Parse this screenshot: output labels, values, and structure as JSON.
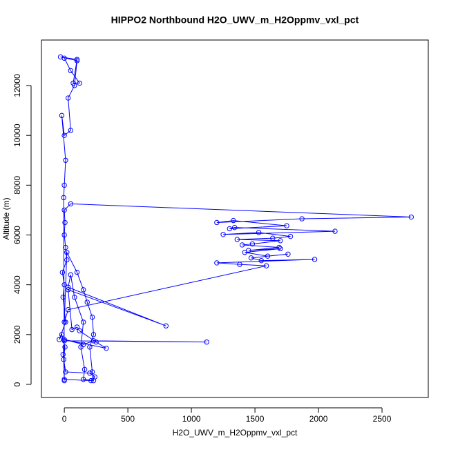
{
  "chart_data": {
    "type": "line",
    "title": "HIPPO2 Northbound H2O_UWV_m_H2Oppmv_vxl_pct",
    "xlabel": "H2O_UWV_m_H2Oppmv_vxl_pct",
    "ylabel": "Altitude (m)",
    "color": "#0000ff",
    "markers": "circle",
    "x": [
      0,
      -5,
      5,
      -20,
      -40,
      10,
      -10,
      0,
      -15,
      20,
      10,
      0,
      5,
      0,
      50,
      2730,
      1870,
      1200,
      1330,
      1750,
      1300,
      1340,
      2130,
      1250,
      1530,
      1780,
      1640,
      1360,
      1700,
      1480,
      1400,
      1690,
      1450,
      1700,
      1420,
      1600,
      1760,
      1470,
      1550,
      1970,
      1200,
      1380,
      1590,
      30,
      0,
      20,
      100,
      150,
      180,
      220,
      230,
      200,
      220,
      230,
      150,
      160,
      130,
      150,
      80,
      50,
      30,
      800,
      30,
      60,
      100,
      120,
      250,
      330,
      0,
      150,
      230,
      1120,
      0,
      -10,
      10,
      200,
      240,
      210,
      0,
      -5,
      0,
      10,
      -20,
      0,
      50,
      30,
      80,
      100,
      -30,
      100,
      70,
      120,
      50,
      0
    ],
    "values": [
      150,
      1000,
      1500,
      2000,
      1800,
      2500,
      3500,
      4000,
      4500,
      5000,
      5500,
      6000,
      6500,
      7000,
      7250,
      6720,
      6650,
      6500,
      6580,
      6370,
      6250,
      6300,
      6150,
      6020,
      6100,
      5940,
      5870,
      5820,
      5770,
      5640,
      5600,
      5500,
      5380,
      5450,
      5300,
      5150,
      5230,
      5080,
      4970,
      5020,
      4880,
      4820,
      4760,
      3000,
      2500,
      5300,
      4500,
      3800,
      3300,
      2700,
      2000,
      1500,
      500,
      150,
      200,
      600,
      1500,
      2500,
      3500,
      4400,
      3900,
      2350,
      3800,
      2200,
      2300,
      2150,
      1700,
      1450,
      1800,
      1600,
      1750,
      1700,
      1750,
      1200,
      500,
      450,
      300,
      150,
      200,
      7500,
      8000,
      9000,
      10800,
      10000,
      10200,
      11500,
      12000,
      13000,
      13150,
      13050,
      12100,
      12100,
      12600,
      13100
    ],
    "xlim": [
      -180,
      2864
    ],
    "ylim": [
      -527,
      13830
    ],
    "xticks": [
      0,
      500,
      1000,
      1500,
      2000,
      2500
    ],
    "yticks": [
      0,
      2000,
      4000,
      6000,
      8000,
      10000,
      12000
    ]
  }
}
